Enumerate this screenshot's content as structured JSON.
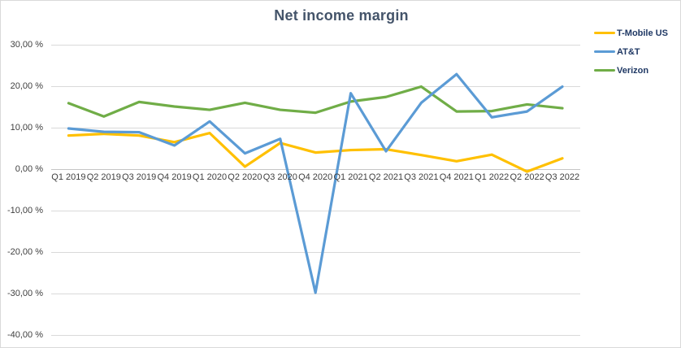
{
  "chart_data": {
    "type": "line",
    "title": "Net income margin",
    "categories": [
      "Q1 2019",
      "Q2 2019",
      "Q3 2019",
      "Q4 2019",
      "Q1 2020",
      "Q2 2020",
      "Q3 2020",
      "Q4 2020",
      "Q1 2021",
      "Q2 2021",
      "Q3 2021",
      "Q4 2021",
      "Q1 2022",
      "Q2 2022",
      "Q3 2022"
    ],
    "series": [
      {
        "name": "T-Mobile US",
        "color": "#FFC000",
        "values": [
          8.1,
          8.5,
          8.1,
          6.5,
          8.7,
          0.6,
          6.3,
          4.0,
          4.6,
          4.8,
          3.4,
          1.9,
          3.5,
          -0.6,
          2.6
        ]
      },
      {
        "name": "AT&T",
        "color": "#5B9BD5",
        "values": [
          9.8,
          9.0,
          8.9,
          5.7,
          11.5,
          3.8,
          7.3,
          -29.8,
          18.3,
          4.3,
          16.0,
          22.9,
          12.5,
          13.9,
          19.9
        ]
      },
      {
        "name": "Verizon",
        "color": "#70AD47",
        "values": [
          15.9,
          12.7,
          16.2,
          15.1,
          14.3,
          16.0,
          14.3,
          13.6,
          16.3,
          17.4,
          19.9,
          13.9,
          14.0,
          15.6,
          14.7
        ]
      }
    ],
    "y_ticks": [
      {
        "label": "30,00 %",
        "value": 30
      },
      {
        "label": "20,00 %",
        "value": 20
      },
      {
        "label": "10,00 %",
        "value": 10
      },
      {
        "label": "0,00 %",
        "value": 0
      },
      {
        "label": "-10,00 %",
        "value": -10
      },
      {
        "label": "-20,00 %",
        "value": -20
      },
      {
        "label": "-30,00 %",
        "value": -30
      },
      {
        "label": "-40,00 %",
        "value": -40
      }
    ],
    "ylim": [
      -40,
      30
    ],
    "xlabel": "",
    "ylabel": "",
    "grid": true,
    "legend_position": "top-right"
  },
  "style": {
    "title_color": "#44546A",
    "legend_text_color": "#1F3864",
    "axis_label_color": "#404040",
    "gridline_color": "#D9D9D9",
    "axis_line_color": "#C6C6C6",
    "background": "#FFFFFF",
    "border_color": "#D9D9D9"
  }
}
